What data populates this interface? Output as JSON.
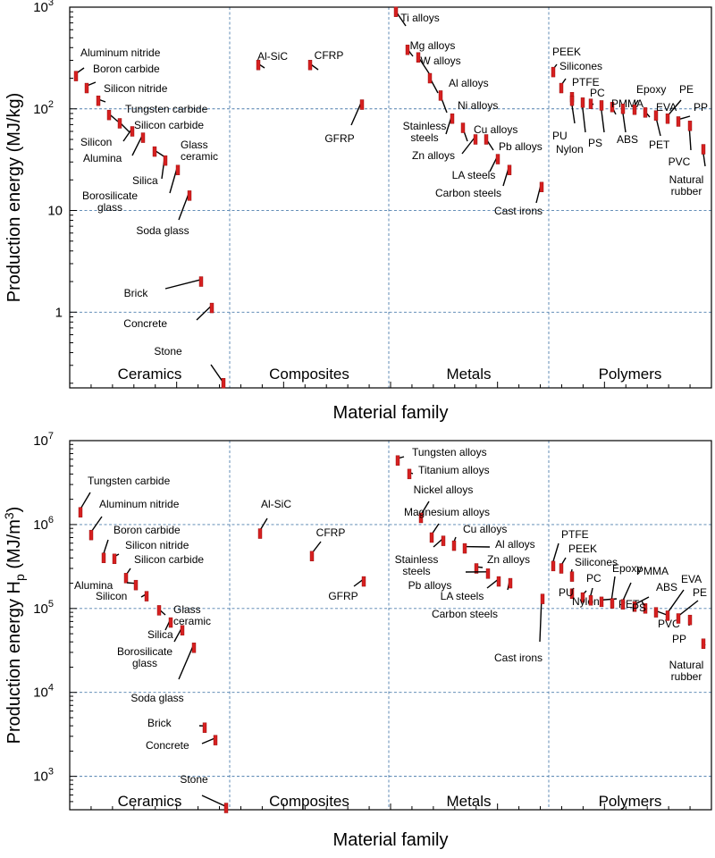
{
  "chart_data": [
    {
      "type": "scatter",
      "xlabel": "Material family",
      "ylabel": "Production energy (MJ/kg)",
      "yscale": "log",
      "ylim": [
        0.18,
        1000
      ],
      "y_ticks": [
        {
          "value": 1000,
          "base": "10",
          "exp": "3"
        },
        {
          "value": 100,
          "base": "10",
          "exp": "2"
        },
        {
          "value": 10,
          "base": "10",
          "exp": ""
        },
        {
          "value": 1,
          "base": "1",
          "exp": ""
        }
      ],
      "families": [
        "Ceramics",
        "Composites",
        "Metals",
        "Polymers"
      ],
      "grid": true,
      "series": [
        {
          "family": "Ceramics",
          "points": [
            {
              "label": "Aluminum nitride",
              "y": 210
            },
            {
              "label": "Boron carbide",
              "y": 160
            },
            {
              "label": "Silicon nitride",
              "y": 120
            },
            {
              "label": "Tungsten carbide",
              "y": 87
            },
            {
              "label": "Silicon carbide",
              "y": 72
            },
            {
              "label": "Silicon",
              "y": 60
            },
            {
              "label": "Alumina",
              "y": 52
            },
            {
              "label": "Glass ceramic",
              "y": 38
            },
            {
              "label": "Silica",
              "y": 31
            },
            {
              "label": "Borosilicate glass",
              "y": 25
            },
            {
              "label": "Soda glass",
              "y": 14
            },
            {
              "label": "Brick",
              "y": 2.0
            },
            {
              "label": "Concrete",
              "y": 1.1
            },
            {
              "label": "Stone",
              "y": 0.2
            }
          ]
        },
        {
          "family": "Composites",
          "points": [
            {
              "label": "Al-SiC",
              "y": 270
            },
            {
              "label": "CFRP",
              "y": 270
            },
            {
              "label": "GFRP",
              "y": 110
            }
          ]
        },
        {
          "family": "Metals",
          "points": [
            {
              "label": "Ti alloys",
              "y": 900
            },
            {
              "label": "Mg alloys",
              "y": 380
            },
            {
              "label": "W alloys",
              "y": 320
            },
            {
              "label": "Al alloys",
              "y": 200
            },
            {
              "label": "Ni alloys",
              "y": 135
            },
            {
              "label": "Stainless steels",
              "y": 80
            },
            {
              "label": "Cu alloys",
              "y": 65
            },
            {
              "label": "Zn alloys",
              "y": 50
            },
            {
              "label": "Pb alloys",
              "y": 50
            },
            {
              "label": "LA steels",
              "y": 32
            },
            {
              "label": "Carbon steels",
              "y": 25
            },
            {
              "label": "Cast irons",
              "y": 17
            }
          ]
        },
        {
          "family": "Polymers",
          "points": [
            {
              "label": "PEEK",
              "y": 230
            },
            {
              "label": "Silicones",
              "y": 160
            },
            {
              "label": "PTFE",
              "y": 130
            },
            {
              "label": "PU",
              "y": 120
            },
            {
              "label": "Nylon",
              "y": 115
            },
            {
              "label": "PC",
              "y": 112
            },
            {
              "label": "PS",
              "y": 108
            },
            {
              "label": "PMMA",
              "y": 104
            },
            {
              "label": "ABS",
              "y": 100
            },
            {
              "label": "Epoxy",
              "y": 98
            },
            {
              "label": "EVA",
              "y": 92
            },
            {
              "label": "PET",
              "y": 86
            },
            {
              "label": "PE",
              "y": 80
            },
            {
              "label": "PP",
              "y": 75
            },
            {
              "label": "PVC",
              "y": 68
            },
            {
              "label": "Natural rubber",
              "y": 40
            }
          ]
        }
      ]
    },
    {
      "type": "scatter",
      "xlabel": "Material family",
      "ylabel": "Production energy H",
      "ylabel_sub": "p",
      "ylabel_unit": "(MJ/m",
      "ylabel_unit_sup": "3",
      "ylabel_close": ")",
      "yscale": "log",
      "ylim": [
        400,
        10000000
      ],
      "y_ticks": [
        {
          "value": 10000000,
          "base": "10",
          "exp": "7"
        },
        {
          "value": 1000000,
          "base": "10",
          "exp": "6"
        },
        {
          "value": 100000,
          "base": "10",
          "exp": "5"
        },
        {
          "value": 10000,
          "base": "10",
          "exp": "4"
        },
        {
          "value": 1000,
          "base": "10",
          "exp": "3"
        }
      ],
      "families": [
        "Ceramics",
        "Composites",
        "Metals",
        "Polymers"
      ],
      "grid": true,
      "series": [
        {
          "family": "Ceramics",
          "points": [
            {
              "label": "Tungsten carbide",
              "y": 1400000
            },
            {
              "label": "Aluminum nitride",
              "y": 750000
            },
            {
              "label": "Boron carbide",
              "y": 400000
            },
            {
              "label": "Silicon nitride",
              "y": 390000
            },
            {
              "label": "Silicon carbide",
              "y": 230000
            },
            {
              "label": "Alumina",
              "y": 190000
            },
            {
              "label": "Silicon",
              "y": 140000
            },
            {
              "label": "Glass ceramic",
              "y": 95000
            },
            {
              "label": "Silica",
              "y": 68000
            },
            {
              "label": "Borosilicate glass",
              "y": 55000
            },
            {
              "label": "Soda glass",
              "y": 34000
            },
            {
              "label": "Brick",
              "y": 3800
            },
            {
              "label": "Concrete",
              "y": 2700
            },
            {
              "label": "Stone",
              "y": 420
            }
          ]
        },
        {
          "family": "Composites",
          "points": [
            {
              "label": "Al-SiC",
              "y": 780000
            },
            {
              "label": "CFRP",
              "y": 420000
            },
            {
              "label": "GFRP",
              "y": 210000
            }
          ]
        },
        {
          "family": "Metals",
          "points": [
            {
              "label": "Tungsten alloys",
              "y": 5800000
            },
            {
              "label": "Titanium alloys",
              "y": 4000000
            },
            {
              "label": "Nickel alloys",
              "y": 1200000
            },
            {
              "label": "Magnesium alloys",
              "y": 700000
            },
            {
              "label": "Stainless steels",
              "y": 640000
            },
            {
              "label": "Cu alloys",
              "y": 560000
            },
            {
              "label": "Al alloys",
              "y": 520000
            },
            {
              "label": "Zn alloys",
              "y": 300000
            },
            {
              "label": "Pb alloys",
              "y": 260000
            },
            {
              "label": "LA steels",
              "y": 210000
            },
            {
              "label": "Carbon steels",
              "y": 200000
            },
            {
              "label": "Cast irons",
              "y": 130000
            }
          ]
        },
        {
          "family": "Polymers",
          "points": [
            {
              "label": "PTFE",
              "y": 320000
            },
            {
              "label": "PEEK",
              "y": 300000
            },
            {
              "label": "Silicones",
              "y": 240000
            },
            {
              "label": "PU",
              "y": 150000
            },
            {
              "label": "Nylon",
              "y": 135000
            },
            {
              "label": "PC",
              "y": 125000
            },
            {
              "label": "PET",
              "y": 120000
            },
            {
              "label": "Epoxy",
              "y": 115000
            },
            {
              "label": "PMMA",
              "y": 112000
            },
            {
              "label": "ABS",
              "y": 105000
            },
            {
              "label": "PS",
              "y": 100000
            },
            {
              "label": "PVC",
              "y": 90000
            },
            {
              "label": "EVA",
              "y": 82000
            },
            {
              "label": "PE",
              "y": 76000
            },
            {
              "label": "PP",
              "y": 73000
            },
            {
              "label": "Natural rubber",
              "y": 38000
            }
          ]
        }
      ]
    }
  ]
}
